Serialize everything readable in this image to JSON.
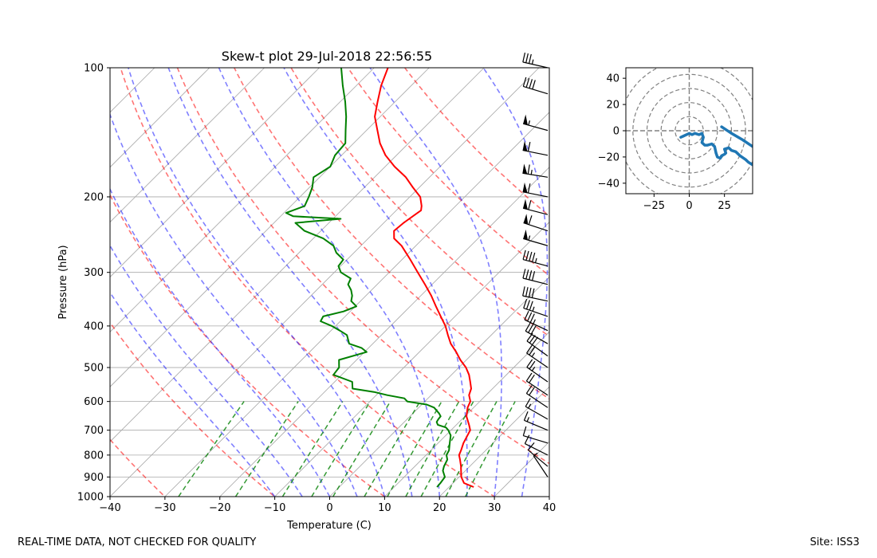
{
  "footer": {
    "disclaimer": "REAL-TIME DATA, NOT CHECKED FOR QUALITY",
    "site": "Site: ISS3"
  },
  "chart_data": [
    {
      "type": "skew-t",
      "title": "Skew-t plot 29-Jul-2018 22:56:55",
      "xlabel": "Temperature (C)",
      "ylabel": "Pressure (hPa)",
      "xlim": [
        -40,
        40
      ],
      "ylim": [
        1000,
        100
      ],
      "xticks": [
        -40,
        -30,
        -20,
        -10,
        0,
        10,
        20,
        30,
        40
      ],
      "yticks": [
        100,
        200,
        300,
        400,
        500,
        600,
        700,
        800,
        900,
        1000
      ],
      "grid": true,
      "series": [
        {
          "name": "Temperature",
          "color": "#ff0000",
          "points": [
            [
              950,
              24.5
            ],
            [
              930,
              22.0
            ],
            [
              900,
              20.4
            ],
            [
              870,
              19.2
            ],
            [
              850,
              18.4
            ],
            [
              820,
              17.0
            ],
            [
              800,
              16.0
            ],
            [
              780,
              15.5
            ],
            [
              750,
              14.6
            ],
            [
              700,
              13.5
            ],
            [
              680,
              12.3
            ],
            [
              650,
              10.3
            ],
            [
              620,
              8.9
            ],
            [
              600,
              8.3
            ],
            [
              580,
              6.9
            ],
            [
              560,
              6.1
            ],
            [
              540,
              4.7
            ],
            [
              520,
              3.2
            ],
            [
              500,
              1.3
            ],
            [
              480,
              -1.1
            ],
            [
              460,
              -3.3
            ],
            [
              440,
              -5.8
            ],
            [
              420,
              -7.9
            ],
            [
              400,
              -10.0
            ],
            [
              380,
              -12.6
            ],
            [
              360,
              -15.3
            ],
            [
              340,
              -18.1
            ],
            [
              320,
              -21.3
            ],
            [
              300,
              -24.8
            ],
            [
              280,
              -28.5
            ],
            [
              260,
              -32.6
            ],
            [
              250,
              -35.3
            ],
            [
              240,
              -36.7
            ],
            [
              230,
              -36.4
            ],
            [
              220,
              -35.8
            ],
            [
              215,
              -35.5
            ],
            [
              210,
              -36.2
            ],
            [
              200,
              -38.1
            ],
            [
              190,
              -41.2
            ],
            [
              180,
              -44.3
            ],
            [
              170,
              -48.3
            ],
            [
              160,
              -52.0
            ],
            [
              150,
              -55.2
            ],
            [
              140,
              -58.0
            ],
            [
              130,
              -61.0
            ],
            [
              120,
              -63.2
            ],
            [
              110,
              -65.5
            ],
            [
              100,
              -67.5
            ]
          ]
        },
        {
          "name": "Dewpoint",
          "color": "#008000",
          "points": [
            [
              950,
              17.8
            ],
            [
              930,
              17.7
            ],
            [
              900,
              17.4
            ],
            [
              870,
              15.9
            ],
            [
              850,
              15.3
            ],
            [
              820,
              14.7
            ],
            [
              800,
              13.7
            ],
            [
              780,
              13.3
            ],
            [
              750,
              12.1
            ],
            [
              720,
              10.9
            ],
            [
              700,
              9.5
            ],
            [
              690,
              8.6
            ],
            [
              680,
              6.6
            ],
            [
              670,
              5.9
            ],
            [
              660,
              5.7
            ],
            [
              650,
              5.6
            ],
            [
              640,
              4.8
            ],
            [
              620,
              2.8
            ],
            [
              610,
              0.9
            ],
            [
              600,
              -3.2
            ],
            [
              590,
              -4.3
            ],
            [
              580,
              -8.0
            ],
            [
              570,
              -11.0
            ],
            [
              560,
              -15.5
            ],
            [
              540,
              -16.8
            ],
            [
              520,
              -21.5
            ],
            [
              500,
              -21.8
            ],
            [
              480,
              -23.2
            ],
            [
              460,
              -19.6
            ],
            [
              450,
              -21.3
            ],
            [
              440,
              -24.3
            ],
            [
              420,
              -26.3
            ],
            [
              410,
              -28.4
            ],
            [
              400,
              -30.7
            ],
            [
              390,
              -33.6
            ],
            [
              380,
              -34.0
            ],
            [
              370,
              -31.2
            ],
            [
              360,
              -29.8
            ],
            [
              350,
              -31.7
            ],
            [
              340,
              -32.5
            ],
            [
              330,
              -33.7
            ],
            [
              320,
              -35.3
            ],
            [
              310,
              -35.9
            ],
            [
              300,
              -38.8
            ],
            [
              290,
              -40.4
            ],
            [
              280,
              -40.7
            ],
            [
              270,
              -43.2
            ],
            [
              260,
              -45.0
            ],
            [
              250,
              -48.2
            ],
            [
              240,
              -53.0
            ],
            [
              230,
              -56.1
            ],
            [
              225,
              -48.6
            ],
            [
              222,
              -57.7
            ],
            [
              218,
              -59.6
            ],
            [
              210,
              -57.5
            ],
            [
              200,
              -58.4
            ],
            [
              190,
              -59.5
            ],
            [
              180,
              -61.1
            ],
            [
              170,
              -60.0
            ],
            [
              160,
              -61.2
            ],
            [
              150,
              -61.5
            ],
            [
              140,
              -63.8
            ],
            [
              130,
              -66.2
            ],
            [
              120,
              -69.1
            ],
            [
              110,
              -72.5
            ],
            [
              100,
              -76.0
            ]
          ]
        }
      ],
      "dry_adiabats_theta_c": [
        -30,
        -10,
        10,
        30,
        50,
        70,
        90,
        110,
        130
      ],
      "moist_adiabats_start_c": [
        -10,
        -5,
        0,
        5,
        10,
        15,
        20,
        25,
        30,
        35
      ],
      "mixing_ratio_lines_gkg": [
        0.4,
        1,
        2,
        3,
        4,
        6,
        8,
        10,
        12,
        16,
        20
      ]
    },
    {
      "type": "hodograph",
      "xlim": [
        -45,
        45
      ],
      "ylim": [
        -48,
        48
      ],
      "xticks": [
        -25,
        0,
        25
      ],
      "yticks": [
        -40,
        -20,
        0,
        20,
        40
      ],
      "rings": [
        10,
        20,
        30,
        40,
        50
      ],
      "color": "#1f77b4",
      "points": [
        [
          -6,
          -5
        ],
        [
          -4,
          -4
        ],
        [
          -2,
          -3
        ],
        [
          0,
          -2
        ],
        [
          2,
          -3
        ],
        [
          4,
          -2
        ],
        [
          7,
          -3
        ],
        [
          9,
          -2
        ],
        [
          10,
          -5
        ],
        [
          9,
          -9
        ],
        [
          11,
          -11
        ],
        [
          13,
          -11
        ],
        [
          16,
          -10
        ],
        [
          18,
          -12
        ],
        [
          19,
          -17
        ],
        [
          20,
          -20
        ],
        [
          22,
          -21
        ],
        [
          23,
          -19
        ],
        [
          25,
          -18
        ],
        [
          26,
          -17
        ],
        [
          25,
          -14
        ],
        [
          28,
          -13
        ],
        [
          30,
          -15
        ],
        [
          33,
          -16
        ],
        [
          36,
          -19
        ],
        [
          40,
          -22
        ],
        [
          42,
          -24
        ],
        [
          45,
          -26
        ]
      ],
      "segment2": [
        [
          23,
          3
        ],
        [
          30,
          -2
        ],
        [
          38,
          -7
        ],
        [
          45,
          -12
        ]
      ]
    }
  ],
  "wind_barbs": [
    {
      "p": 100,
      "u": 35,
      "v": -8
    },
    {
      "p": 115,
      "u": 40,
      "v": -12
    },
    {
      "p": 140,
      "u": 55,
      "v": -15
    },
    {
      "p": 160,
      "u": 60,
      "v": -12
    },
    {
      "p": 180,
      "u": 62,
      "v": -10
    },
    {
      "p": 200,
      "u": 60,
      "v": -12
    },
    {
      "p": 220,
      "u": 58,
      "v": -15
    },
    {
      "p": 240,
      "u": 55,
      "v": -18
    },
    {
      "p": 260,
      "u": 52,
      "v": -15
    },
    {
      "p": 290,
      "u": 45,
      "v": -12
    },
    {
      "p": 320,
      "u": 40,
      "v": -10
    },
    {
      "p": 350,
      "u": 38,
      "v": -8
    },
    {
      "p": 380,
      "u": 35,
      "v": -12
    },
    {
      "p": 410,
      "u": 30,
      "v": -14
    },
    {
      "p": 440,
      "u": 28,
      "v": -16
    },
    {
      "p": 470,
      "u": 25,
      "v": -18
    },
    {
      "p": 500,
      "u": 22,
      "v": -15
    },
    {
      "p": 540,
      "u": 20,
      "v": -14
    },
    {
      "p": 580,
      "u": 18,
      "v": -12
    },
    {
      "p": 620,
      "u": 15,
      "v": -10
    },
    {
      "p": 660,
      "u": 14,
      "v": -8
    },
    {
      "p": 700,
      "u": 12,
      "v": -5
    },
    {
      "p": 750,
      "u": 10,
      "v": -3
    },
    {
      "p": 800,
      "u": 8,
      "v": -4
    },
    {
      "p": 850,
      "u": 6,
      "v": -5
    },
    {
      "p": 900,
      "u": 4,
      "v": -6
    }
  ]
}
